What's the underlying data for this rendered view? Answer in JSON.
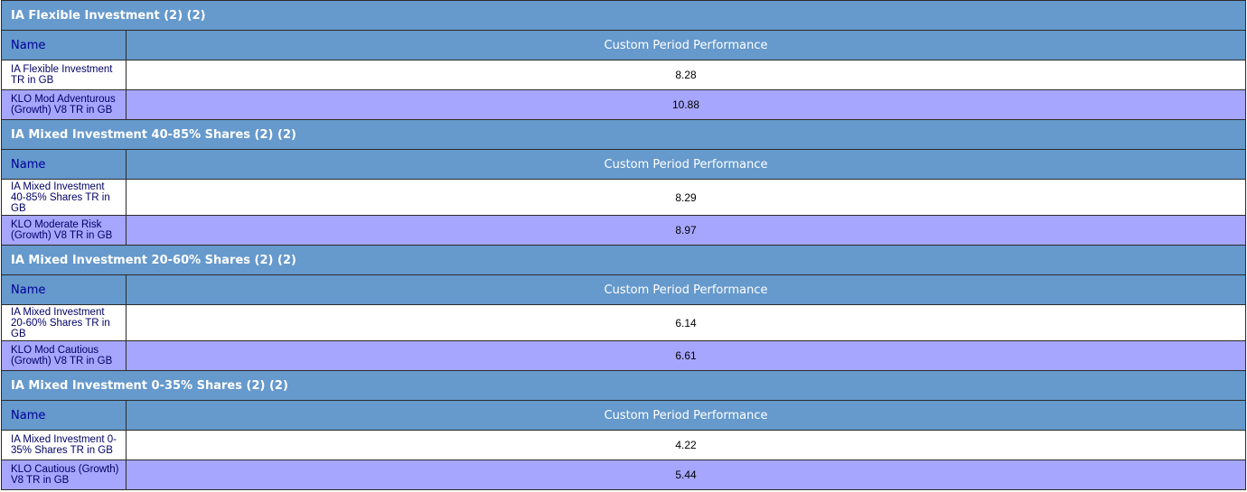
{
  "column_headers": {
    "name": "Name",
    "performance": "Custom Period Performance"
  },
  "groups": [
    {
      "title": "IA Flexible Investment (2) (2)",
      "rows": [
        {
          "name": "IA Flexible Investment TR in GB",
          "value": "8.28"
        },
        {
          "name": "KLO Mod Adventurous (Growth) V8 TR in GB",
          "value": "10.88"
        }
      ]
    },
    {
      "title": "IA Mixed Investment 40-85% Shares (2) (2)",
      "rows": [
        {
          "name": "IA Mixed Investment 40-85% Shares TR in GB",
          "value": "8.29"
        },
        {
          "name": "KLO Moderate Risk (Growth) V8 TR in GB",
          "value": "8.97"
        }
      ]
    },
    {
      "title": "IA Mixed Investment 20-60% Shares (2) (2)",
      "rows": [
        {
          "name": "IA Mixed Investment 20-60% Shares TR in GB",
          "value": "6.14"
        },
        {
          "name": "KLO Mod Cautious (Growth) V8 TR in GB",
          "value": "6.61"
        }
      ]
    },
    {
      "title": "IA Mixed Investment 0-35% Shares (2) (2)",
      "rows": [
        {
          "name": "IA Mixed Investment 0-35% Shares TR in GB",
          "value": "4.22"
        },
        {
          "name": "KLO Cautious (Growth) V8 TR in GB",
          "value": "5.44"
        }
      ]
    }
  ],
  "colors": {
    "header_blue": "#6699cc",
    "name_header_text": "#000099",
    "alt_row": "#a6a6ff"
  }
}
